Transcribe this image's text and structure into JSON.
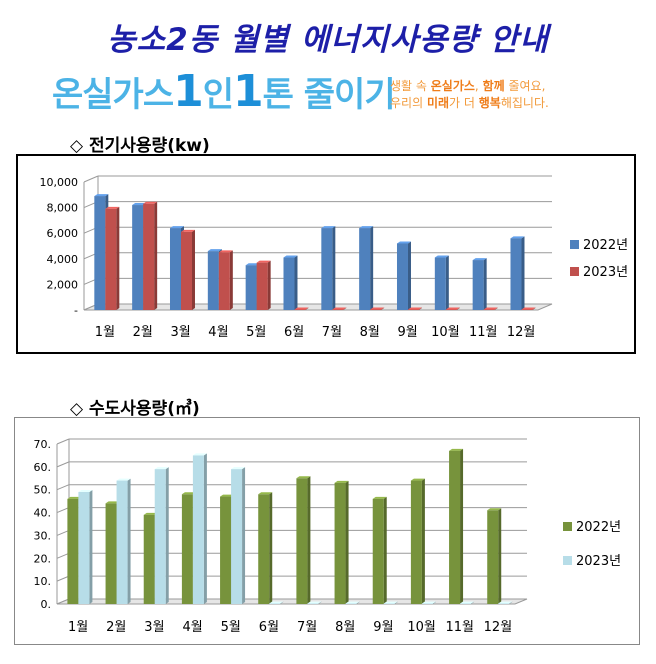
{
  "header": {
    "title": "농소2동 월별 에너지사용량 안내",
    "campaign_prefix": "온실가스",
    "campaign_one_a": "1",
    "campaign_mid": "인",
    "campaign_one_b": "1",
    "campaign_suffix": "톤 줄이기",
    "slogan_line1_a": "생활 속 ",
    "slogan_line1_b": "온실가스",
    "slogan_line1_c": ", ",
    "slogan_line1_d": "함께",
    "slogan_line1_e": " 줄여요,",
    "slogan_line2_a": "우리의 ",
    "slogan_line2_b": "미래",
    "slogan_line2_c": "가 더 ",
    "slogan_line2_d": "행복",
    "slogan_line2_e": "해집니다."
  },
  "chart_data": [
    {
      "type": "bar",
      "title": "◇ 전기사용량(kw)",
      "categories": [
        "1월",
        "2월",
        "3월",
        "4월",
        "5월",
        "6월",
        "7월",
        "8월",
        "9월",
        "10월",
        "11월",
        "12월"
      ],
      "series": [
        {
          "name": "2022년",
          "color": "#4f81bd",
          "values": [
            8900,
            8200,
            6400,
            4600,
            3500,
            4100,
            6400,
            6400,
            5200,
            4100,
            3900,
            5600
          ]
        },
        {
          "name": "2023년",
          "color": "#c0504d",
          "values": [
            7900,
            8300,
            6100,
            4500,
            3700,
            0,
            0,
            0,
            0,
            0,
            0,
            0
          ]
        }
      ],
      "ylim": [
        0,
        10000
      ],
      "yticks": [
        "-",
        "2,000",
        "4,000",
        "6,000",
        "8,000",
        "10,000"
      ],
      "legend": "right",
      "grid": true
    },
    {
      "type": "bar",
      "title": "◇ 수도사용량(㎥)",
      "categories": [
        "1월",
        "2월",
        "3월",
        "4월",
        "5월",
        "6월",
        "7월",
        "8월",
        "9월",
        "10월",
        "11월",
        "12월"
      ],
      "series": [
        {
          "name": "2022년",
          "color": "#77933c",
          "values": [
            46,
            44,
            39,
            48,
            47,
            48,
            55,
            53,
            46,
            54,
            67,
            41
          ]
        },
        {
          "name": "2023년",
          "color": "#b7dde8",
          "values": [
            49,
            54,
            59,
            65,
            59,
            0,
            0,
            0,
            0,
            0,
            0,
            0
          ]
        }
      ],
      "ylim": [
        0,
        70
      ],
      "yticks": [
        "0.",
        "10.",
        "20.",
        "30.",
        "40.",
        "50.",
        "60.",
        "70."
      ],
      "legend": "right",
      "grid": true
    }
  ]
}
